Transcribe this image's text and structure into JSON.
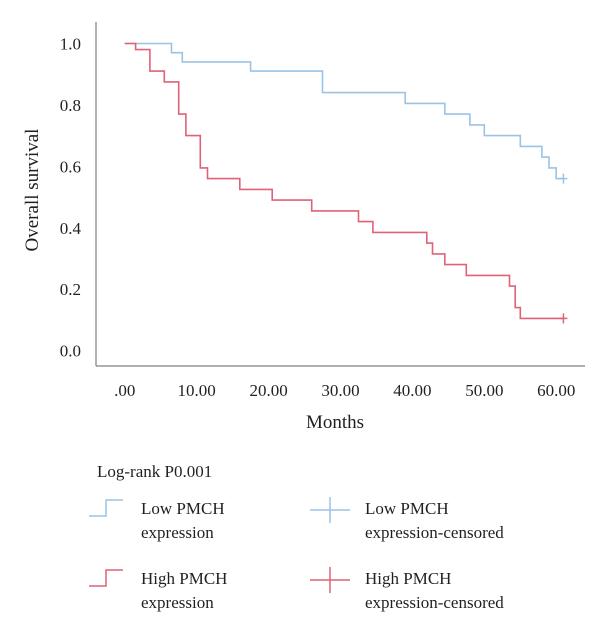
{
  "chart_data": {
    "type": "line",
    "subtype": "kaplan-meier step",
    "xlabel": "Months",
    "ylabel": "Overall survival",
    "xlim": [
      -4,
      64
    ],
    "ylim": [
      -0.05,
      1.07
    ],
    "x_ticks": [
      0,
      10,
      20,
      30,
      40,
      50,
      60
    ],
    "x_tick_labels": [
      ".00",
      "10.00",
      "20.00",
      "30.00",
      "40.00",
      "50.00",
      "60.00"
    ],
    "y_ticks": [
      0,
      0.2,
      0.4,
      0.6,
      0.8,
      1.0
    ],
    "y_tick_labels": [
      "0.0",
      "0.2",
      "0.4",
      "0.6",
      "0.8",
      "1.0"
    ],
    "grid": false,
    "series": [
      {
        "name": "Low PMCH expression",
        "color": "#9bc3e6",
        "steps": [
          [
            0,
            1.0
          ],
          [
            6.5,
            1.0
          ],
          [
            6.5,
            0.97
          ],
          [
            8,
            0.97
          ],
          [
            8,
            0.94
          ],
          [
            17.5,
            0.94
          ],
          [
            17.5,
            0.91
          ],
          [
            27.5,
            0.91
          ],
          [
            27.5,
            0.84
          ],
          [
            39,
            0.84
          ],
          [
            39,
            0.805
          ],
          [
            44.5,
            0.805
          ],
          [
            44.5,
            0.77
          ],
          [
            48,
            0.77
          ],
          [
            48,
            0.735
          ],
          [
            50,
            0.735
          ],
          [
            50,
            0.7
          ],
          [
            55,
            0.7
          ],
          [
            55,
            0.665
          ],
          [
            58,
            0.665
          ],
          [
            58,
            0.63
          ],
          [
            59,
            0.63
          ],
          [
            59,
            0.595
          ],
          [
            60,
            0.595
          ],
          [
            60,
            0.56
          ],
          [
            61,
            0.56
          ]
        ],
        "censored": [
          [
            61,
            0.56
          ]
        ]
      },
      {
        "name": "High PMCH expression",
        "color": "#e06277",
        "steps": [
          [
            0,
            1.0
          ],
          [
            1.5,
            1.0
          ],
          [
            1.5,
            0.98
          ],
          [
            3.5,
            0.98
          ],
          [
            3.5,
            0.91
          ],
          [
            5.5,
            0.91
          ],
          [
            5.5,
            0.875
          ],
          [
            7.5,
            0.875
          ],
          [
            7.5,
            0.77
          ],
          [
            8.5,
            0.77
          ],
          [
            8.5,
            0.7
          ],
          [
            10.5,
            0.7
          ],
          [
            10.5,
            0.595
          ],
          [
            11.5,
            0.595
          ],
          [
            11.5,
            0.56
          ],
          [
            16,
            0.56
          ],
          [
            16,
            0.525
          ],
          [
            20.5,
            0.525
          ],
          [
            20.5,
            0.49
          ],
          [
            26,
            0.49
          ],
          [
            26,
            0.455
          ],
          [
            32.5,
            0.455
          ],
          [
            32.5,
            0.42
          ],
          [
            34.5,
            0.42
          ],
          [
            34.5,
            0.385
          ],
          [
            42,
            0.385
          ],
          [
            42,
            0.35
          ],
          [
            42.8,
            0.35
          ],
          [
            42.8,
            0.315
          ],
          [
            44.5,
            0.315
          ],
          [
            44.5,
            0.28
          ],
          [
            47.5,
            0.28
          ],
          [
            47.5,
            0.245
          ],
          [
            53.5,
            0.245
          ],
          [
            53.5,
            0.21
          ],
          [
            54.3,
            0.21
          ],
          [
            54.3,
            0.14
          ],
          [
            55,
            0.14
          ],
          [
            55,
            0.105
          ],
          [
            61,
            0.105
          ]
        ],
        "censored": [
          [
            61,
            0.105
          ]
        ]
      }
    ]
  },
  "legend": {
    "title": "Log-rank P0.001",
    "items": [
      {
        "label": "Low PMCH\nexpression",
        "symbol": "step",
        "color": "#9bc3e6"
      },
      {
        "label": "Low PMCH\nexpression-censored",
        "symbol": "cross",
        "color": "#9bc3e6"
      },
      {
        "label": "High PMCH\nexpression",
        "symbol": "step",
        "color": "#e06277"
      },
      {
        "label": "High PMCH\nexpression-censored",
        "symbol": "cross",
        "color": "#e06277"
      }
    ]
  }
}
